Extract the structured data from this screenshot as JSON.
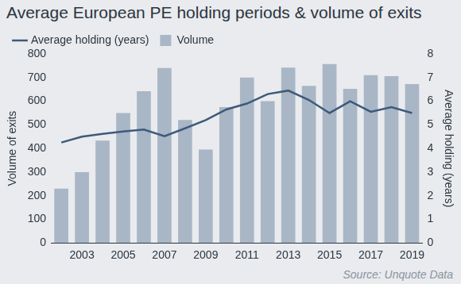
{
  "chart_data": {
    "type": "bar",
    "title": "Average European PE holding periods & volume of exits",
    "source": "Source: Unquote Data",
    "categories": [
      null,
      "2003",
      null,
      "2005",
      null,
      "2007",
      null,
      "2009",
      null,
      "2011",
      null,
      "2013",
      null,
      "2015",
      null,
      "2017",
      null,
      "2019"
    ],
    "series": [
      {
        "name": "Volume",
        "type": "bar",
        "color": "#a9b6c5",
        "values": [
          230,
          300,
          433,
          550,
          642,
          740,
          520,
          395,
          575,
          700,
          600,
          742,
          665,
          757,
          652,
          710,
          706,
          672
        ]
      },
      {
        "name": "Average holding (years)",
        "type": "line",
        "axis": "y2",
        "color": "#3e5a7b",
        "marker": "none",
        "values": [
          4.25,
          4.5,
          4.62,
          4.72,
          4.8,
          4.52,
          4.85,
          5.2,
          5.65,
          5.9,
          6.3,
          6.45,
          6.05,
          5.5,
          6.0,
          5.55,
          5.75,
          5.5
        ]
      }
    ],
    "ylabel": "Volume of exits",
    "ylim": [
      0,
      800
    ],
    "yticks": [
      0,
      100,
      200,
      300,
      400,
      500,
      600,
      700,
      800
    ],
    "y2label": "Average holding (years)",
    "y2lim": [
      0,
      8
    ],
    "y2ticks": [
      0,
      1,
      2,
      3,
      4,
      5,
      6,
      7,
      8
    ],
    "grid": false,
    "legend": "top"
  }
}
